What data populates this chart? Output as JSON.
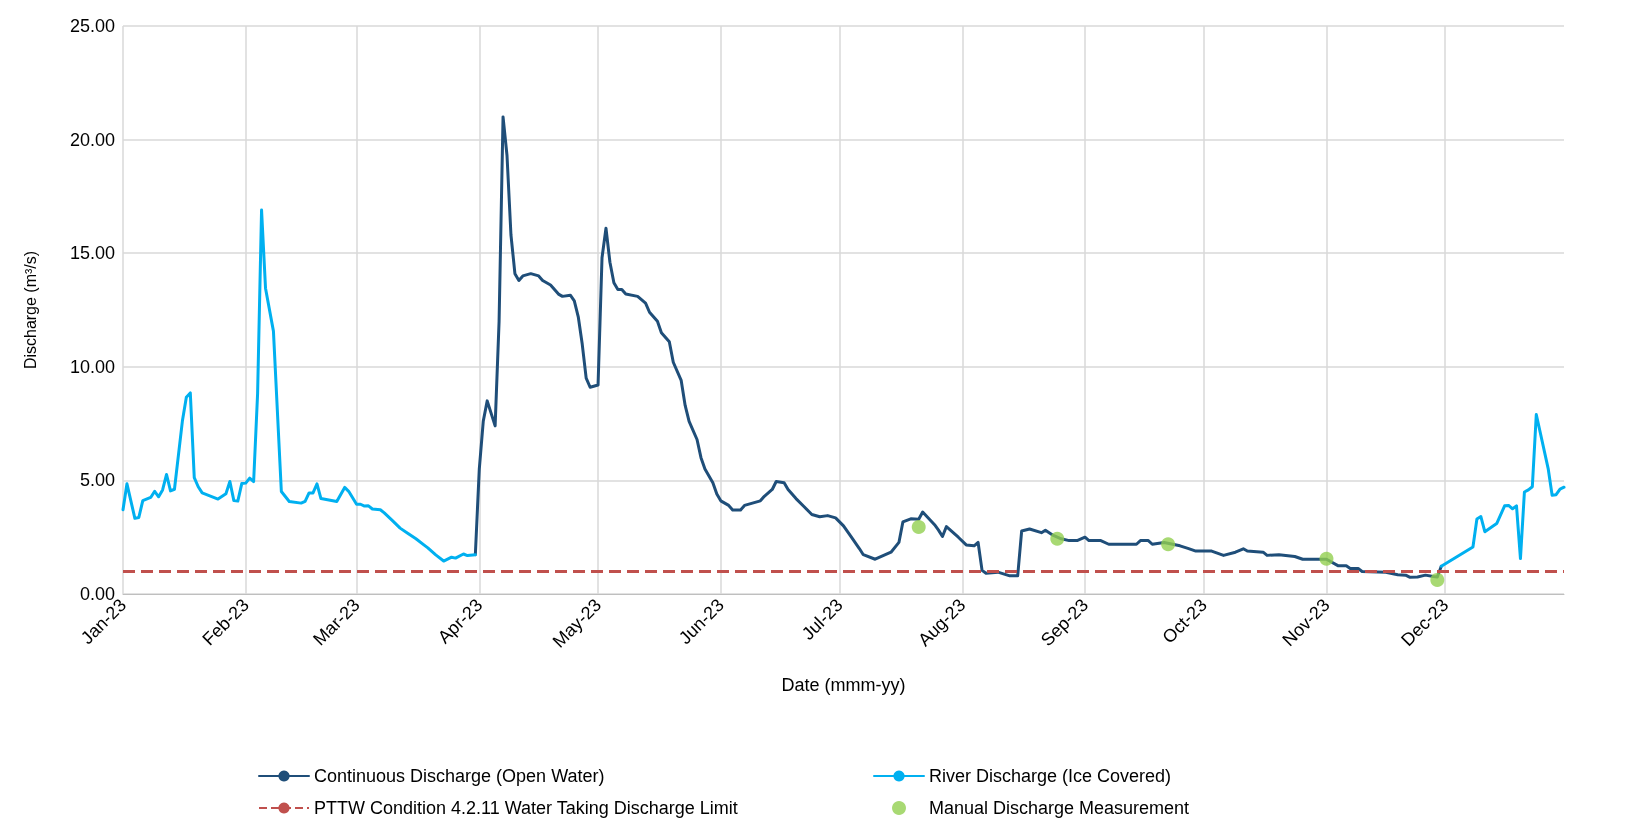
{
  "chart_data": {
    "type": "line",
    "xlabel": "Date (mmm-yy)",
    "ylabel": "Discharge (m³/s)",
    "xlim": [
      "2023-01-01",
      "2023-12-31"
    ],
    "xticks": [
      {
        "value": "2023-01-01",
        "label": "Jan-23"
      },
      {
        "value": "2023-02-01",
        "label": "Feb-23"
      },
      {
        "value": "2023-03-01",
        "label": "Mar-23"
      },
      {
        "value": "2023-04-01",
        "label": "Apr-23"
      },
      {
        "value": "2023-05-01",
        "label": "May-23"
      },
      {
        "value": "2023-06-01",
        "label": "Jun-23"
      },
      {
        "value": "2023-07-01",
        "label": "Jul-23"
      },
      {
        "value": "2023-08-01",
        "label": "Aug-23"
      },
      {
        "value": "2023-09-01",
        "label": "Sep-23"
      },
      {
        "value": "2023-10-01",
        "label": "Oct-23"
      },
      {
        "value": "2023-11-01",
        "label": "Nov-23"
      },
      {
        "value": "2023-12-01",
        "label": "Dec-23"
      }
    ],
    "ylim": [
      0,
      25
    ],
    "yticks": [
      {
        "value": 0,
        "label": "0.00"
      },
      {
        "value": 5,
        "label": "5.00"
      },
      {
        "value": 10,
        "label": "10.00"
      },
      {
        "value": 15,
        "label": "15.00"
      },
      {
        "value": 20,
        "label": "20.00"
      },
      {
        "value": 25,
        "label": "25.00"
      }
    ],
    "grid": true,
    "legend": "bottom",
    "marker": "none",
    "line_style": "solid",
    "series": [
      {
        "name": "Continuous Discharge (Open Water)",
        "color": "#1f4e79",
        "x": [
          "2023-03-31",
          "2023-04-01",
          "2023-04-02",
          "2023-04-03",
          "2023-04-05",
          "2023-04-06",
          "2023-04-07",
          "2023-04-08",
          "2023-04-09",
          "2023-04-10",
          "2023-04-11",
          "2023-04-12",
          "2023-04-14",
          "2023-04-16",
          "2023-04-17",
          "2023-04-19",
          "2023-04-21",
          "2023-04-22",
          "2023-04-24",
          "2023-04-25",
          "2023-04-26",
          "2023-04-27",
          "2023-04-28",
          "2023-04-29",
          "2023-05-01",
          "2023-05-02",
          "2023-05-03",
          "2023-05-04",
          "2023-05-05",
          "2023-05-06",
          "2023-05-07",
          "2023-05-08",
          "2023-05-11",
          "2023-05-13",
          "2023-05-14",
          "2023-05-16",
          "2023-05-17",
          "2023-05-19",
          "2023-05-20",
          "2023-05-22",
          "2023-05-23",
          "2023-05-24",
          "2023-05-26",
          "2023-05-27",
          "2023-05-28",
          "2023-05-30",
          "2023-05-31",
          "2023-06-01",
          "2023-06-03",
          "2023-06-04",
          "2023-06-06",
          "2023-06-07",
          "2023-06-09",
          "2023-06-11",
          "2023-06-12",
          "2023-06-14",
          "2023-06-15",
          "2023-06-17",
          "2023-06-18",
          "2023-06-20",
          "2023-06-22",
          "2023-06-24",
          "2023-06-26",
          "2023-06-28",
          "2023-06-30",
          "2023-07-02",
          "2023-07-04",
          "2023-07-06",
          "2023-07-07",
          "2023-07-10",
          "2023-07-14",
          "2023-07-16",
          "2023-07-17",
          "2023-07-19",
          "2023-07-21",
          "2023-07-22",
          "2023-07-25",
          "2023-07-26",
          "2023-07-27",
          "2023-07-28",
          "2023-07-31",
          "2023-08-02",
          "2023-08-04",
          "2023-08-05",
          "2023-08-06",
          "2023-08-07",
          "2023-08-10",
          "2023-08-13",
          "2023-08-15",
          "2023-08-16",
          "2023-08-18",
          "2023-08-21",
          "2023-08-22",
          "2023-08-24",
          "2023-08-26",
          "2023-08-28",
          "2023-08-30",
          "2023-09-01",
          "2023-09-02",
          "2023-09-05",
          "2023-09-07",
          "2023-09-14",
          "2023-09-15",
          "2023-09-17",
          "2023-09-18",
          "2023-09-21",
          "2023-09-25",
          "2023-09-27",
          "2023-09-29",
          "2023-10-03",
          "2023-10-06",
          "2023-10-09",
          "2023-10-11",
          "2023-10-12",
          "2023-10-16",
          "2023-10-17",
          "2023-10-20",
          "2023-10-24",
          "2023-10-26",
          "2023-10-30",
          "2023-11-01",
          "2023-11-04",
          "2023-11-06",
          "2023-11-07",
          "2023-11-09",
          "2023-11-10",
          "2023-11-16",
          "2023-11-19",
          "2023-11-21",
          "2023-11-22",
          "2023-11-24",
          "2023-11-26",
          "2023-11-28",
          "2023-11-29",
          "2023-11-30"
        ],
        "values": [
          1.73,
          5.5,
          7.6,
          8.5,
          7.4,
          12.0,
          21.0,
          19.3,
          15.8,
          14.1,
          13.8,
          14.0,
          14.1,
          14.0,
          13.8,
          13.6,
          13.2,
          13.1,
          13.15,
          12.9,
          12.2,
          11.0,
          9.5,
          9.1,
          9.2,
          14.8,
          16.1,
          14.6,
          13.7,
          13.4,
          13.4,
          13.2,
          13.1,
          12.8,
          12.4,
          12.0,
          11.5,
          11.1,
          10.2,
          9.4,
          8.3,
          7.6,
          6.8,
          6.0,
          5.5,
          4.9,
          4.4,
          4.1,
          3.9,
          3.7,
          3.7,
          3.9,
          4.0,
          4.1,
          4.3,
          4.6,
          4.95,
          4.9,
          4.6,
          4.2,
          3.85,
          3.5,
          3.4,
          3.45,
          3.35,
          3.0,
          2.5,
          2.0,
          1.73,
          1.53,
          1.84,
          2.27,
          3.17,
          3.31,
          3.29,
          3.61,
          3.05,
          2.81,
          2.53,
          2.97,
          2.5,
          2.16,
          2.12,
          2.27,
          1.04,
          0.91,
          0.96,
          0.8,
          0.8,
          2.77,
          2.86,
          2.7,
          2.81,
          2.58,
          2.43,
          2.35,
          2.35,
          2.5,
          2.35,
          2.35,
          2.19,
          2.19,
          2.35,
          2.35,
          2.19,
          2.27,
          2.12,
          2.01,
          1.89,
          1.89,
          1.7,
          1.84,
          1.99,
          1.89,
          1.84,
          1.7,
          1.73,
          1.65,
          1.53,
          1.53,
          1.53,
          1.24,
          1.24,
          1.12,
          1.12,
          0.99,
          0.96,
          0.85,
          0.83,
          0.74,
          0.75,
          0.83,
          0.77,
          0.75,
          1.22
        ]
      },
      {
        "name": "River Discharge (Ice Covered)",
        "color": "#00b0f0",
        "x": [
          "2023-01-01",
          "2023-01-02",
          "2023-01-04",
          "2023-01-05",
          "2023-01-06",
          "2023-01-08",
          "2023-01-09",
          "2023-01-10",
          "2023-01-11",
          "2023-01-12",
          "2023-01-13",
          "2023-01-14",
          "2023-01-16",
          "2023-01-17",
          "2023-01-18",
          "2023-01-19",
          "2023-01-20",
          "2023-01-21",
          "2023-01-25",
          "2023-01-27",
          "2023-01-28",
          "2023-01-29",
          "2023-01-30",
          "2023-01-31",
          "2023-02-01",
          "2023-02-02",
          "2023-02-03",
          "2023-02-04",
          "2023-02-05",
          "2023-02-06",
          "2023-02-08",
          "2023-02-10",
          "2023-02-12",
          "2023-02-15",
          "2023-02-16",
          "2023-02-17",
          "2023-02-18",
          "2023-02-19",
          "2023-02-20",
          "2023-02-24",
          "2023-02-26",
          "2023-02-27",
          "2023-03-01",
          "2023-03-02",
          "2023-03-03",
          "2023-03-04",
          "2023-03-05",
          "2023-03-07",
          "2023-03-08",
          "2023-03-10",
          "2023-03-12",
          "2023-03-14",
          "2023-03-16",
          "2023-03-18",
          "2023-03-19",
          "2023-03-21",
          "2023-03-23",
          "2023-03-25",
          "2023-03-26",
          "2023-03-28",
          "2023-03-29",
          "2023-03-31",
          "2023-06-15",
          "2023-11-30",
          "2023-12-08",
          "2023-12-09",
          "2023-12-10",
          "2023-12-11",
          "2023-12-14",
          "2023-12-16",
          "2023-12-17",
          "2023-12-18",
          "2023-12-19",
          "2023-12-20",
          "2023-12-21",
          "2023-12-22",
          "2023-12-23",
          "2023-12-24",
          "2023-12-27",
          "2023-12-28",
          "2023-12-29",
          "2023-12-30",
          "2023-12-31"
        ],
        "values": [
          3.71,
          4.85,
          3.33,
          3.37,
          4.11,
          4.25,
          4.52,
          4.28,
          4.58,
          5.26,
          4.54,
          4.61,
          7.61,
          8.66,
          8.85,
          5.12,
          4.72,
          4.45,
          4.18,
          4.41,
          4.95,
          4.11,
          4.09,
          4.86,
          4.88,
          5.1,
          4.95,
          8.82,
          16.9,
          13.46,
          11.57,
          4.51,
          4.07,
          4.0,
          4.08,
          4.45,
          4.45,
          4.85,
          4.2,
          4.07,
          4.69,
          4.52,
          3.95,
          3.95,
          3.87,
          3.88,
          3.74,
          3.71,
          3.57,
          3.24,
          2.9,
          2.66,
          2.43,
          2.16,
          2.03,
          1.72,
          1.45,
          1.62,
          1.58,
          1.76,
          1.69,
          1.73,
          null,
          1.22,
          2.07,
          3.3,
          3.41,
          2.74,
          3.1,
          3.88,
          3.9,
          3.75,
          3.88,
          1.56,
          4.49,
          4.58,
          4.72,
          7.9,
          5.52,
          4.35,
          4.37,
          4.62,
          4.7
        ]
      },
      {
        "name": "Manual Discharge Measurement",
        "type": "scatter",
        "marker": "circle",
        "color": "#92d050",
        "x": [
          "2023-07-21",
          "2023-08-25",
          "2023-09-22",
          "2023-11-01",
          "2023-11-29"
        ],
        "values": [
          2.95,
          2.43,
          2.19,
          1.55,
          0.62
        ]
      }
    ],
    "ref_lines": [
      {
        "axis": "y",
        "value": 1.0,
        "label": "PTTW Condition 4.2.11 Water Taking Discharge Limit",
        "color": "#c0504d",
        "line_style": "dashed"
      }
    ]
  }
}
